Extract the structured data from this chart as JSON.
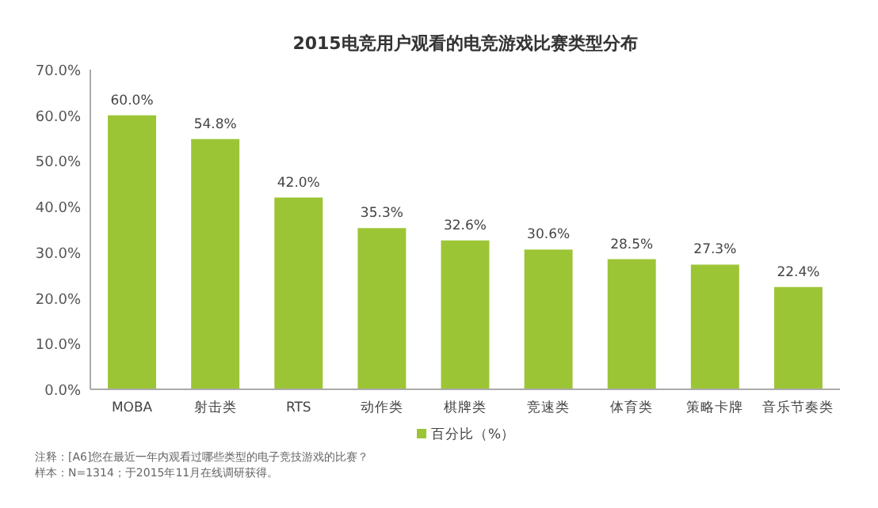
{
  "chart_data": {
    "type": "bar",
    "title": "2015电竞用户观看的电竞游戏比赛类型分布",
    "categories": [
      "MOBA",
      "射击类",
      "RTS",
      "动作类",
      "棋牌类",
      "竞速类",
      "体育类",
      "策略卡牌",
      "音乐节奏类"
    ],
    "series": [
      {
        "name": "百分比（%）",
        "color": "#9cc536",
        "values": [
          60.0,
          54.8,
          42.0,
          35.3,
          32.6,
          30.6,
          28.5,
          27.3,
          22.4
        ],
        "value_labels": [
          "60.0%",
          "54.8%",
          "42.0%",
          "35.3%",
          "32.6%",
          "30.6%",
          "28.5%",
          "27.3%",
          "22.4%"
        ]
      }
    ],
    "ylim": [
      0,
      70
    ],
    "yticks": [
      {
        "value": 0,
        "label": "0.0%"
      },
      {
        "value": 10,
        "label": "10.0%"
      },
      {
        "value": 20,
        "label": "20.0%"
      },
      {
        "value": 30,
        "label": "30.0%"
      },
      {
        "value": 40,
        "label": "40.0%"
      },
      {
        "value": 50,
        "label": "50.0%"
      },
      {
        "value": 60,
        "label": "60.0%"
      },
      {
        "value": 70,
        "label": "70.0%"
      }
    ],
    "legend": "bottom",
    "grid": false,
    "annotations": [
      "注释：[A6]您在最近一年内观看过哪些类型的电子竞技游戏的比赛？",
      "样本：N=1314；于2015年11月在线调研获得。"
    ]
  }
}
